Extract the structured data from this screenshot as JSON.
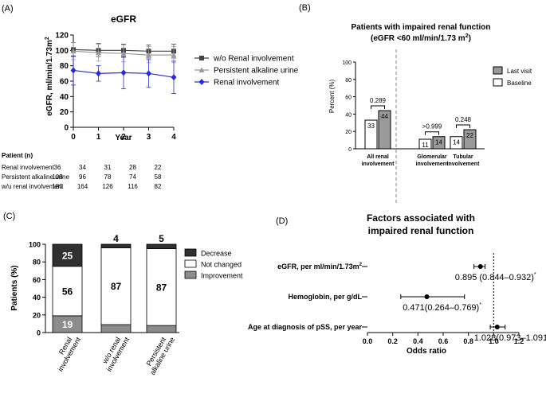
{
  "chart_data": [
    {
      "panel": "(A)",
      "type": "line",
      "title": "eGFR",
      "xlabel": "Year",
      "ylabel": "eGFR, ml/min/1.73m",
      "ylabel_sup": "2",
      "xlim": [
        0,
        4
      ],
      "ylim": [
        0,
        120
      ],
      "xticks": [
        "0",
        "1",
        "2",
        "3",
        "4"
      ],
      "yticks": [
        "0",
        "20",
        "40",
        "60",
        "80",
        "100",
        "120"
      ],
      "legend": "right",
      "x": [
        0,
        1,
        2,
        3,
        4
      ],
      "series": [
        {
          "name": "w/o Renal involvement",
          "color": "#444444",
          "marker": "square",
          "values": [
            101,
            100,
            100,
            99,
            99
          ],
          "err_low": [
            92,
            92,
            91,
            90,
            90
          ],
          "err_high": [
            110,
            109,
            108,
            107,
            108
          ]
        },
        {
          "name": "Persistent alkaline urine",
          "color": "#9a9a9a",
          "marker": "triangle",
          "values": [
            99,
            97,
            96,
            94,
            94
          ],
          "err_low": [
            88,
            86,
            85,
            84,
            84
          ],
          "err_high": [
            110,
            108,
            107,
            105,
            105
          ]
        },
        {
          "name": "Renal involvement",
          "color": "#2a2ae0",
          "marker": "diamond",
          "values": [
            74,
            70,
            71,
            70,
            65
          ],
          "err_low": [
            55,
            60,
            50,
            52,
            44
          ],
          "err_high": [
            93,
            80,
            92,
            88,
            86
          ]
        }
      ],
      "table": {
        "header": "Patient (n)",
        "rows": [
          {
            "label": "Renal involvement",
            "values": [
              "36",
              "34",
              "31",
              "28",
              "22"
            ]
          },
          {
            "label": "Persistent alkaline urine",
            "values": [
              "108",
              "96",
              "78",
              "74",
              "58"
            ]
          },
          {
            "label": "w/u renal involvement",
            "values": [
              "180",
              "164",
              "126",
              "116",
              "82"
            ]
          }
        ]
      }
    },
    {
      "panel": "(B)",
      "type": "bar",
      "title_line1": "Patients with impaired renal function",
      "title_line2": "(eGFR <60 ml/min/1.73 m",
      "title_sup": "2",
      "title_end": ")",
      "ylabel": "Percent (%)",
      "ylim": [
        0,
        100
      ],
      "yticks": [
        "0",
        "20",
        "40",
        "60",
        "80",
        "100"
      ],
      "legend": "top-right",
      "categories": [
        "All renal involvement",
        "Glomerular involvement",
        "Tubular involvement"
      ],
      "category_lines": [
        [
          "All renal",
          "involvement"
        ],
        [
          "Glomerular",
          "involvement"
        ],
        [
          "Tubular",
          "involvement"
        ]
      ],
      "series": [
        {
          "name": "Baseline",
          "color": "#ffffff",
          "values": [
            33,
            11,
            14
          ],
          "labels": [
            "33",
            "11",
            "14"
          ]
        },
        {
          "name": "Last visit",
          "color": "#9a9a9a",
          "values": [
            44,
            14,
            22
          ],
          "labels": [
            "44",
            "14",
            "22"
          ]
        }
      ],
      "pvalues": [
        "0.289",
        ">0.999",
        "0.248"
      ]
    },
    {
      "panel": "(C)",
      "type": "bar",
      "stacked": true,
      "ylabel": "Patients (%)",
      "ylim": [
        0,
        100
      ],
      "yticks": [
        "0",
        "20",
        "40",
        "60",
        "80",
        "100"
      ],
      "legend": "right",
      "categories": [
        "Renal involvement",
        "w/o renal involvement",
        "Persistent alkaline urine"
      ],
      "category_lines": [
        [
          "Renal",
          "involvement"
        ],
        [
          "w/o renal",
          "involvement"
        ],
        [
          "Persistent",
          "alkaline urine"
        ]
      ],
      "series": [
        {
          "name": "Improvement",
          "color": "#8c8c8c",
          "values": [
            19,
            9,
            8
          ],
          "labels": [
            "19",
            "9",
            "8"
          ]
        },
        {
          "name": "Not changed",
          "color": "#ffffff",
          "values": [
            56,
            87,
            87
          ],
          "labels": [
            "56",
            "87",
            "87"
          ]
        },
        {
          "name": "Decrease",
          "color": "#303030",
          "values": [
            25,
            4,
            5
          ],
          "labels": [
            "25",
            "4",
            "5"
          ]
        }
      ]
    },
    {
      "panel": "(D)",
      "type": "scatter",
      "subtype": "forest",
      "title_line1": "Factors associated with",
      "title_line2": "impaired renal function",
      "xlabel": "Odds ratio",
      "xlim": [
        0,
        1.2
      ],
      "xticks": [
        "0.0",
        "0.2",
        "0.4",
        "0.6",
        "0.8",
        "1.0",
        "1.2"
      ],
      "reference_x": 1.0,
      "rows": [
        {
          "label": "eGFR, per ml/min/1.73m",
          "label_sup": "2",
          "or": 0.895,
          "low": 0.844,
          "high": 0.932,
          "text": "0.895 (0.844–0.932)",
          "star": "*"
        },
        {
          "label": "Hemoglobin, per g/dL",
          "label_sup": "",
          "or": 0.471,
          "low": 0.264,
          "high": 0.769,
          "text": "0.471(0.264–0.769)",
          "star": "*"
        },
        {
          "label": "Age at diagnosis of pSS, per year",
          "label_sup": "",
          "or": 1.028,
          "low": 0.973,
          "high": 1.091,
          "text": "1.028(0.973–1.091)",
          "star": ""
        }
      ]
    }
  ]
}
